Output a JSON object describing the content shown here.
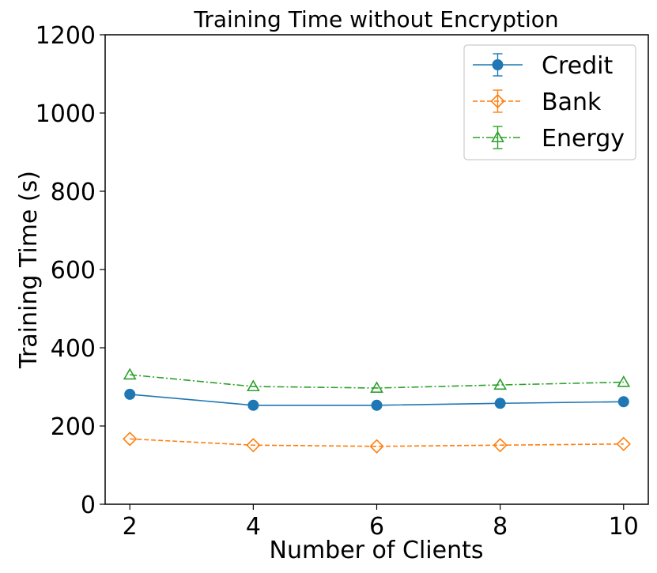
{
  "chart_data": {
    "type": "line",
    "title": "Training Time without Encryption",
    "xlabel": "Number of Clients",
    "ylabel": "Training Time (s)",
    "x": [
      2,
      4,
      6,
      8,
      10
    ],
    "xlim": [
      1.6,
      10.4
    ],
    "ylim": [
      0,
      1200
    ],
    "xticks": [
      "2",
      "4",
      "6",
      "8",
      "10"
    ],
    "yticks": [
      "0",
      "200",
      "400",
      "600",
      "800",
      "1000",
      "1200"
    ],
    "grid": false,
    "legend_position": "top-right",
    "series": [
      {
        "name": "Credit",
        "values": [
          281,
          253,
          253,
          258,
          262
        ],
        "color": "#1f77b4",
        "marker": "circle-filled",
        "line_style": "solid"
      },
      {
        "name": "Bank",
        "values": [
          167,
          151,
          148,
          151,
          154
        ],
        "color": "#ff7f0e",
        "marker": "diamond-open",
        "line_style": "dashed"
      },
      {
        "name": "Energy",
        "values": [
          331,
          301,
          297,
          305,
          312
        ],
        "color": "#2ca02c",
        "marker": "triangle-open",
        "line_style": "dashdot"
      }
    ]
  }
}
